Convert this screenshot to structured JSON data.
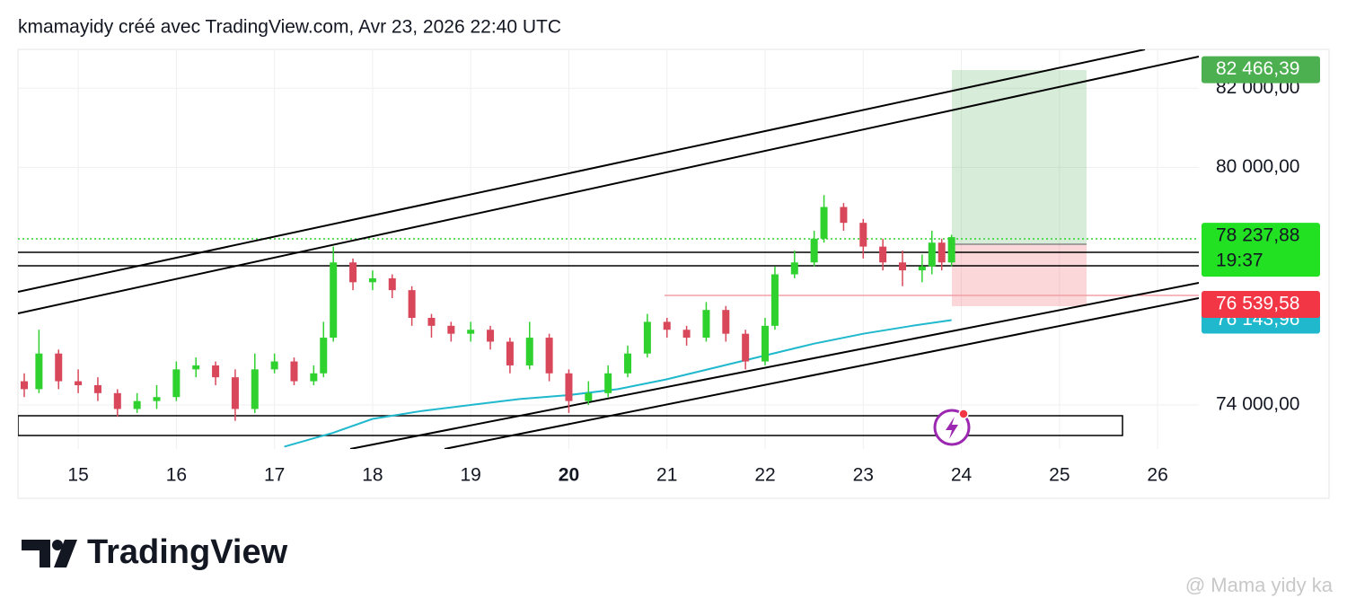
{
  "header": "kmamayidy créé avec TradingView.com, Avr 23, 2026 22:40 UTC",
  "brand": "TradingView",
  "watermark": "@ Mama yidy ka",
  "chart_data": {
    "type": "candlestick",
    "up_color": "#2fd12f",
    "down_color": "#d9475a",
    "grid": true,
    "x": [
      14.45,
      14.6,
      14.8,
      15.0,
      15.2,
      15.4,
      15.6,
      15.8,
      16.0,
      16.2,
      16.4,
      16.6,
      16.8,
      17.0,
      17.2,
      17.4,
      17.5,
      17.6,
      17.8,
      18.0,
      18.2,
      18.4,
      18.6,
      18.8,
      19.0,
      19.2,
      19.4,
      19.6,
      19.8,
      20.0,
      20.2,
      20.4,
      20.6,
      20.8,
      21.0,
      21.2,
      21.4,
      21.6,
      21.8,
      22.0,
      22.1,
      22.3,
      22.5,
      22.6,
      22.8,
      23.0,
      23.2,
      23.4,
      23.6,
      23.7,
      23.8,
      23.9
    ],
    "open": [
      74600,
      74400,
      75300,
      74600,
      74500,
      74300,
      73900,
      74100,
      74200,
      74900,
      75000,
      74700,
      73900,
      74900,
      75100,
      74600,
      74800,
      75700,
      77600,
      77100,
      77200,
      76900,
      76200,
      76000,
      75800,
      75900,
      75600,
      75000,
      75700,
      74800,
      74100,
      74300,
      74800,
      75300,
      76100,
      75900,
      75700,
      76400,
      75800,
      75100,
      76000,
      77300,
      77600,
      78200,
      79000,
      78600,
      78000,
      77600,
      77400,
      77500,
      78100,
      77600
    ],
    "high": [
      74800,
      75900,
      75400,
      74900,
      74700,
      74400,
      74300,
      74500,
      75100,
      75200,
      75100,
      74900,
      75300,
      75300,
      75200,
      75000,
      76100,
      78000,
      77700,
      77400,
      77300,
      77000,
      76300,
      76100,
      76100,
      76000,
      75700,
      76100,
      75800,
      74900,
      74600,
      75000,
      75500,
      76300,
      76200,
      76000,
      76600,
      76500,
      75900,
      76200,
      77500,
      77900,
      78400,
      79300,
      79100,
      78700,
      78200,
      77900,
      77800,
      78400,
      78200,
      78300
    ],
    "low": [
      74200,
      74300,
      74400,
      74300,
      74100,
      73700,
      73800,
      73900,
      74100,
      74700,
      74500,
      73600,
      73800,
      74800,
      74500,
      74500,
      74700,
      75600,
      76900,
      76900,
      76700,
      76000,
      75700,
      75600,
      75600,
      75400,
      74800,
      74900,
      74600,
      73800,
      74000,
      74200,
      74700,
      75200,
      75700,
      75500,
      75600,
      75600,
      74900,
      75000,
      75900,
      77200,
      77500,
      78100,
      78400,
      77700,
      77400,
      77000,
      77100,
      77300,
      77400,
      77500
    ],
    "close": [
      74400,
      75300,
      74600,
      74500,
      74300,
      73900,
      74100,
      74200,
      74900,
      75000,
      74700,
      73900,
      74900,
      75100,
      74600,
      74800,
      75700,
      77600,
      77100,
      77200,
      76900,
      76200,
      76000,
      75800,
      75900,
      75600,
      75000,
      75700,
      74800,
      74100,
      74300,
      74800,
      75300,
      76100,
      75900,
      75700,
      76400,
      75800,
      75100,
      76000,
      77300,
      77600,
      78200,
      79000,
      78600,
      78000,
      77600,
      77400,
      77500,
      78100,
      77600,
      78237.88
    ],
    "overlay": {
      "color": "#1fb8cd",
      "x": [
        17.1,
        17.6,
        18.0,
        18.5,
        19.0,
        19.5,
        20.0,
        20.5,
        21.0,
        21.5,
        22.0,
        22.5,
        23.0,
        23.5,
        23.9
      ],
      "values": [
        72950,
        73300,
        73650,
        73850,
        74000,
        74150,
        74250,
        74400,
        74650,
        74950,
        75250,
        75550,
        75800,
        76000,
        76143.96
      ]
    },
    "xlim": [
      14.386,
      26.42
    ],
    "ylim": [
      72890,
      82980
    ],
    "xticks": [
      15,
      16,
      17,
      18,
      19,
      20,
      21,
      22,
      23,
      24,
      25,
      26
    ],
    "xticks_bold": [
      20
    ],
    "yticks": [
      {
        "value": 74000,
        "label": "74 000,00"
      },
      {
        "value": 80000,
        "label": "80 000,00"
      },
      {
        "value": 82000,
        "label": "82 000,00"
      }
    ],
    "price_labels": [
      {
        "value": 76143.96,
        "label": "76 143,96",
        "color": "#1fb8cd"
      },
      {
        "value": 78237.88,
        "label": "78 237,88",
        "color": "#22e022",
        "countdown": "19:37"
      },
      {
        "value": 76539.58,
        "label": "76 539,58",
        "color": "#f23645"
      },
      {
        "value": 82466.39,
        "label": "82 466,39",
        "color": "#4caf50"
      }
    ]
  }
}
